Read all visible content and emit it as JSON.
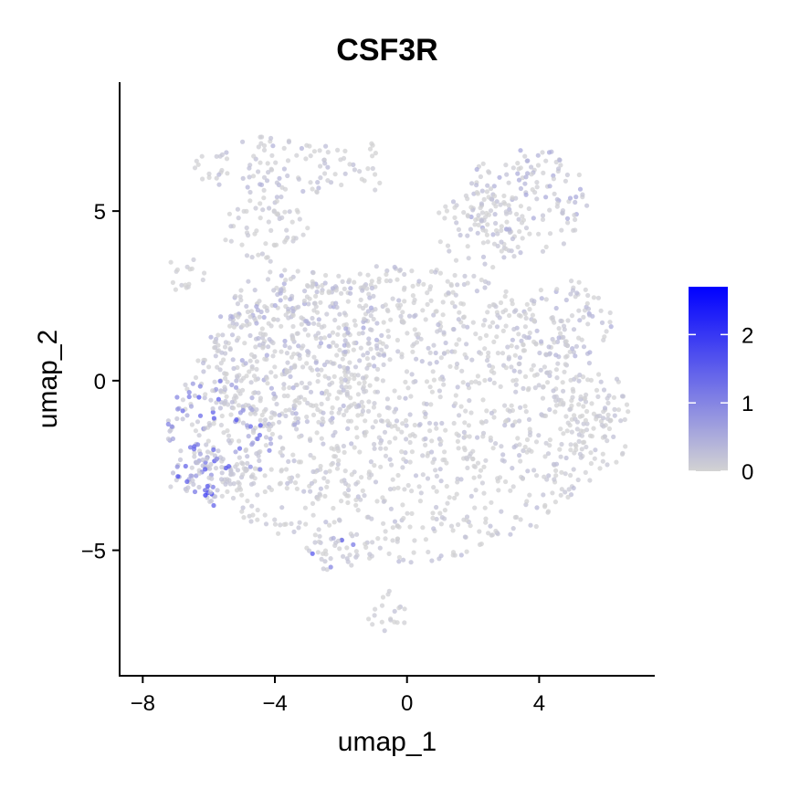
{
  "chart_data": {
    "type": "scatter",
    "title": "CSF3R",
    "xlabel": "umap_1",
    "ylabel": "umap_2",
    "xlim": [
      -8.7,
      7.5
    ],
    "ylim": [
      -8.7,
      8.8
    ],
    "xticks": [
      -8,
      -4,
      0,
      4
    ],
    "yticks": [
      -5,
      0,
      5
    ],
    "xtick_labels": [
      "−8",
      "−4",
      "0",
      "4"
    ],
    "ytick_labels": [
      "−5",
      "0",
      "5"
    ],
    "grid": false,
    "color_scale": {
      "low_color": "#d3d3d3",
      "high_color": "#0000ff",
      "min": 0,
      "max": 2.7,
      "ticks": [
        0,
        1,
        2
      ],
      "tick_labels": [
        "0",
        "1",
        "2"
      ],
      "legend_placement": "right"
    },
    "regions": [
      {
        "cx": -0.3,
        "cy": -1.0,
        "rx": 6.5,
        "ry": 4.4,
        "expr": 0.2
      },
      {
        "cx": -3.2,
        "cy": 1.0,
        "rx": 2.8,
        "ry": 2.4,
        "expr": 0.35
      },
      {
        "cx": 3.6,
        "cy": 5.3,
        "rx": 1.9,
        "ry": 1.6,
        "expr": 0.35
      },
      {
        "cx": 2.3,
        "cy": 4.6,
        "rx": 1.4,
        "ry": 1.3,
        "expr": 0.2
      },
      {
        "cx": -4.0,
        "cy": 6.3,
        "rx": 2.5,
        "ry": 0.9,
        "expr": 0.25
      },
      {
        "cx": -4.3,
        "cy": 4.4,
        "rx": 1.3,
        "ry": 1.0,
        "expr": 0.15
      },
      {
        "cx": -1.1,
        "cy": 6.2,
        "rx": 0.35,
        "ry": 0.8,
        "expr": 0.1
      },
      {
        "cx": -6.7,
        "cy": 3.2,
        "rx": 0.6,
        "ry": 0.6,
        "expr": 0.1
      },
      {
        "cx": -5.7,
        "cy": -1.6,
        "rx": 1.6,
        "ry": 2.0,
        "expr": 1.0
      },
      {
        "cx": -6.2,
        "cy": -3.0,
        "rx": 1.0,
        "ry": 0.8,
        "expr": 1.4
      },
      {
        "cx": -0.6,
        "cy": -6.8,
        "rx": 0.7,
        "ry": 0.6,
        "expr": 0.2
      },
      {
        "cx": -2.3,
        "cy": -5.1,
        "rx": 0.9,
        "ry": 0.5,
        "expr": 1.0
      },
      {
        "cx": 4.8,
        "cy": 1.8,
        "rx": 1.4,
        "ry": 1.2,
        "expr": 0.3
      },
      {
        "cx": 5.8,
        "cy": -1.2,
        "rx": 1.0,
        "ry": 1.5,
        "expr": 0.15
      }
    ]
  }
}
